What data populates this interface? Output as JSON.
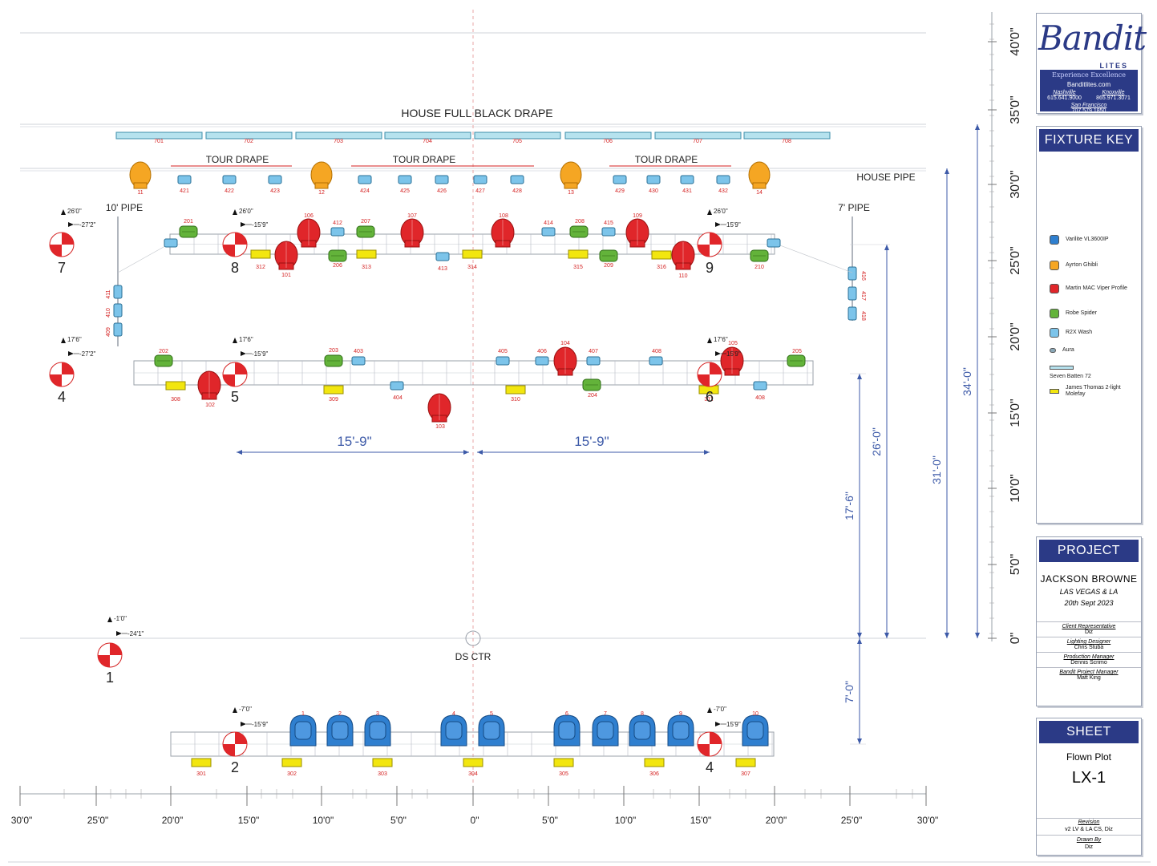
{
  "stage": {
    "house_full_black_drape": "HOUSE FULL BLACK DRAPE",
    "house_pipe": "HOUSE PIPE",
    "tour_drape": "TOUR DRAPE",
    "ten_pipe": "10' PIPE",
    "seven_pipe": "7' PIPE",
    "ds_ctr": "DS CTR",
    "dim_15_9": "15'-9\"",
    "colors": {
      "blue": "#2f7fcf",
      "orange": "#f5a623",
      "red": "#e0262a",
      "green": "#63b33a",
      "lightblue": "#7cc4ea",
      "yellow": "#f2e60f",
      "accent": "#2b3a86",
      "dim": "#3d5aa8"
    }
  },
  "battens": [
    "701",
    "702",
    "703",
    "704",
    "705",
    "706",
    "707",
    "708"
  ],
  "ghibli": [
    "11",
    "12",
    "13",
    "14"
  ],
  "r2x_top": [
    "421",
    "422",
    "423",
    "424",
    "425",
    "426",
    "427",
    "428",
    "429",
    "430",
    "431",
    "432"
  ],
  "truss_upper": {
    "spiders": [
      "201",
      "206",
      "207",
      "208",
      "209",
      "210"
    ],
    "vipers": [
      "101",
      "106",
      "107",
      "108",
      "109",
      "110"
    ],
    "molefays": [
      "312",
      "313",
      "314",
      "315",
      "316"
    ],
    "r2x": [
      "412",
      "413",
      "414",
      "415"
    ]
  },
  "pipe_left": [
    "411",
    "410",
    "409"
  ],
  "pipe_right": [
    "416",
    "417",
    "418"
  ],
  "truss_mid": {
    "spiders": [
      "202",
      "203",
      "204",
      "205"
    ],
    "vipers": [
      "102",
      "103",
      "104",
      "105"
    ],
    "molefays": [
      "308",
      "309",
      "310",
      "311"
    ],
    "r2x": [
      "403",
      "404",
      "405",
      "406",
      "407",
      "408"
    ]
  },
  "truss_down": {
    "varilites": [
      "1",
      "2",
      "3",
      "4",
      "5",
      "6",
      "7",
      "8",
      "9",
      "10"
    ],
    "molefays": [
      "301",
      "302",
      "303",
      "304",
      "305",
      "306",
      "307"
    ]
  },
  "points": {
    "p7": {
      "num": "7",
      "h": "26'0\"",
      "o": "-27'2\""
    },
    "p8": {
      "num": "8",
      "h": "26'0\"",
      "o": "-15'9\""
    },
    "p9": {
      "num": "9",
      "h": "26'0\"",
      "o": "15'9\""
    },
    "p4a": {
      "num": "4",
      "h": "17'6\"",
      "o": "-27'2\""
    },
    "p5": {
      "num": "5",
      "h": "17'6\"",
      "o": "-15'9\""
    },
    "p6": {
      "num": "6",
      "h": "17'6\"",
      "o": "15'9\""
    },
    "p1": {
      "num": "1",
      "h": "-1'0\"",
      "o": "-24'1\""
    },
    "p2": {
      "num": "2",
      "h": "-7'0\"",
      "o": "-15'9\""
    },
    "p4b": {
      "num": "4",
      "h": "-7'0\"",
      "o": "15'9\""
    }
  },
  "v_dims": {
    "d34": "34'-0\"",
    "d31": "31'-0\"",
    "d26": "26'-0\"",
    "d17": "17'-6\"",
    "d7": "7'-0\""
  },
  "y_scale": [
    "40'0\"",
    "35'0\"",
    "30'0\"",
    "25'0\"",
    "20'0\"",
    "15'0\"",
    "10'0\"",
    "5'0\"",
    "0\""
  ],
  "x_scale": [
    "30'0\"",
    "25'0\"",
    "20'0\"",
    "15'0\"",
    "10'0\"",
    "5'0\"",
    "0\"",
    "5'0\"",
    "10'0\"",
    "15'0\"",
    "20'0\"",
    "25'0\"",
    "30'0\""
  ],
  "logo": {
    "brand": "Bandit",
    "lites": "LITES",
    "tagline": "Experience Excellence",
    "website": "Banditlites.com",
    "nashville": "Nashville",
    "nashville_phone": "615.641.9000",
    "knoxville": "Knoxville",
    "knoxville_phone": "865.971.3071",
    "sf": "San Francisco",
    "sf_phone": "707.579.1850"
  },
  "fixture_key": {
    "title": "FIXTURE KEY",
    "items": [
      {
        "label": "Varilite VL3600IP",
        "color": "#2f7fcf"
      },
      {
        "label": "Ayrton Ghibli",
        "color": "#f5a623"
      },
      {
        "label": "Martin MAC Viper Profile",
        "color": "#e0262a"
      },
      {
        "label": "Robe Spider",
        "color": "#63b33a"
      },
      {
        "label": "R2X Wash",
        "color": "#7cc4ea"
      },
      {
        "label": "Aura",
        "color": "#8aa8b8"
      },
      {
        "label": "Seven Batten 72",
        "color": "#b6e2ee"
      },
      {
        "label": "James Thomas 2-light Molefay",
        "color": "#f2e60f"
      }
    ]
  },
  "project": {
    "title": "PROJECT",
    "artist": "JACKSON BROWNE",
    "venue": "LAS VEGAS & LA",
    "date": "20th Sept 2023",
    "roles": [
      {
        "role": "Client Representative",
        "name": "Diz"
      },
      {
        "role": "Lighting Designer",
        "name": "Chris Stuba"
      },
      {
        "role": "Production Manager",
        "name": "Dennis Scrimo"
      },
      {
        "role": "Bandit Project Manager",
        "name": "Matt King"
      }
    ]
  },
  "sheet": {
    "title": "SHEET",
    "name": "Flown Plot",
    "number": "LX-1",
    "revision_label": "Revision",
    "revision": "v2 LV & LA CS, Diz",
    "drawn_label": "Drawn By",
    "drawn": "Diz"
  }
}
